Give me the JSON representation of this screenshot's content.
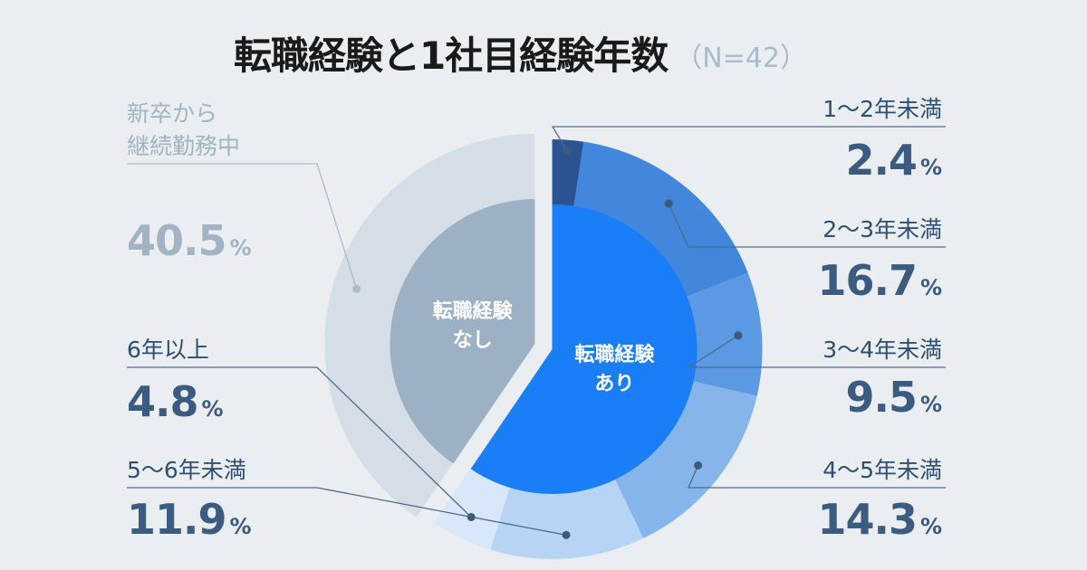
{
  "chart_data": {
    "type": "pie",
    "title": "転職経験と1社目経験年数",
    "sample_size_label": "（N=42）",
    "inner_ring": [
      {
        "label": "転職経験なし",
        "label_lines": [
          "転職経験",
          "なし"
        ],
        "value": 40.5,
        "color": "#9db1c5"
      },
      {
        "label": "転職経験あり",
        "label_lines": [
          "転職経験",
          "あり"
        ],
        "value": 59.5,
        "color": "#1a7ff7"
      }
    ],
    "outer_ring": [
      {
        "label": "1〜2年未満",
        "value": 2.4,
        "pct_text": "2.4",
        "color": "#2c5391",
        "group": "あり"
      },
      {
        "label": "2〜3年未満",
        "value": 16.7,
        "pct_text": "16.7",
        "color": "#4287dc",
        "group": "あり"
      },
      {
        "label": "3〜4年未満",
        "value": 9.5,
        "pct_text": "9.5",
        "color": "#5b99e2",
        "group": "あり"
      },
      {
        "label": "4〜5年未満",
        "value": 14.3,
        "pct_text": "14.3",
        "color": "#86b5ec",
        "group": "あり"
      },
      {
        "label": "5〜6年未満",
        "value": 11.9,
        "pct_text": "11.9",
        "color": "#b7d4f5",
        "group": "あり"
      },
      {
        "label": "6年以上",
        "value": 4.8,
        "pct_text": "4.8",
        "color": "#d8e7f9",
        "group": "あり"
      },
      {
        "label_lines": [
          "新卒から",
          "継続勤務中"
        ],
        "label": "新卒から継続勤務中",
        "value": 40.5,
        "pct_text": "40.5",
        "color": "#d5dee7",
        "group": "なし"
      }
    ],
    "percent_sign": "%"
  }
}
